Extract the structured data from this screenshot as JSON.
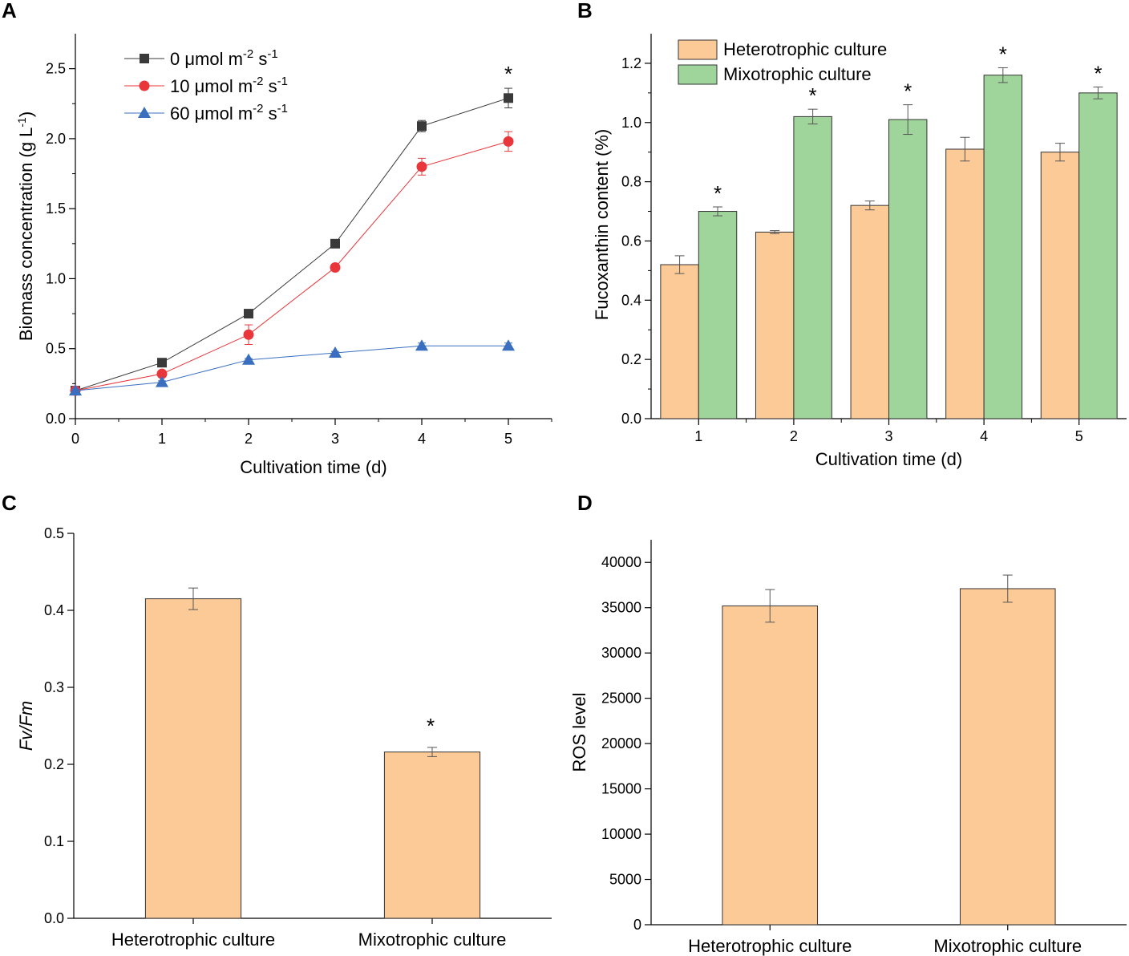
{
  "colors": {
    "dark_series": "#3a3a3a",
    "red_series": "#e8363b",
    "blue_series": "#3a6fc0",
    "heterotrophic_fill": "#fcca96",
    "mixotrophic_fill": "#9fd49b",
    "axis": "#000000",
    "error_bar": "#555555"
  },
  "chart_data": [
    {
      "id": "A",
      "panel_label": "A",
      "type": "line",
      "xlabel": "Cultivation time (d)",
      "ylabel": "Biomass concentration (g L",
      "ylabel_sup": "-1",
      "ylabel_tail": ")",
      "x": [
        0,
        1,
        2,
        3,
        4,
        5
      ],
      "xlim": [
        0,
        5.5
      ],
      "ylim": [
        0,
        2.75
      ],
      "xticks": [
        0,
        1,
        2,
        3,
        4,
        5
      ],
      "yticks": [
        0.0,
        0.5,
        1.0,
        1.5,
        2.0,
        2.5
      ],
      "series": [
        {
          "name_main": "0 μmol m",
          "name_sup1": "-2",
          "name_mid": " s",
          "name_sup2": "-1",
          "marker": "square",
          "color": "#3a3a3a",
          "values": [
            0.2,
            0.4,
            0.75,
            1.25,
            2.09,
            2.29
          ],
          "errors": [
            0.01,
            0.02,
            0.02,
            0.02,
            0.04,
            0.07
          ]
        },
        {
          "name_main": "10 μmol m",
          "name_sup1": "-2",
          "name_mid": " s",
          "name_sup2": "-1",
          "marker": "circle",
          "color": "#e8363b",
          "values": [
            0.2,
            0.32,
            0.6,
            1.08,
            1.8,
            1.98
          ],
          "errors": [
            0.01,
            0.02,
            0.07,
            0.02,
            0.06,
            0.07
          ]
        },
        {
          "name_main": "60 μmol m",
          "name_sup1": "-2",
          "name_mid": " s",
          "name_sup2": "-1",
          "marker": "triangle",
          "color": "#3a6fc0",
          "values": [
            0.2,
            0.26,
            0.42,
            0.47,
            0.52,
            0.52
          ],
          "errors": [
            0.01,
            0.01,
            0.01,
            0.01,
            0.02,
            0.02
          ]
        }
      ],
      "significance": [
        {
          "x": 5,
          "label": "*"
        }
      ]
    },
    {
      "id": "B",
      "panel_label": "B",
      "type": "bar",
      "xlabel": "Cultivation time (d)",
      "ylabel": "Fucoxanthin content (%)",
      "categories": [
        "1",
        "2",
        "3",
        "4",
        "5"
      ],
      "ylim": [
        0,
        1.3
      ],
      "yticks": [
        0.0,
        0.2,
        0.4,
        0.6,
        0.8,
        1.0,
        1.2
      ],
      "series": [
        {
          "name": "Heterotrophic culture",
          "color": "#fcca96",
          "values": [
            0.52,
            0.63,
            0.72,
            0.91,
            0.9
          ],
          "errors": [
            0.03,
            0.005,
            0.015,
            0.04,
            0.03
          ]
        },
        {
          "name": "Mixotrophic culture",
          "color": "#9fd49b",
          "values": [
            0.7,
            1.02,
            1.01,
            1.16,
            1.1
          ],
          "errors": [
            0.015,
            0.025,
            0.05,
            0.025,
            0.02
          ]
        }
      ],
      "significance_label": "*"
    },
    {
      "id": "C",
      "panel_label": "C",
      "type": "bar",
      "xlabel": "",
      "ylabel": "Fv/Fm",
      "categories": [
        "Heterotrophic culture",
        "Mixotrophic culture"
      ],
      "ylim": [
        0,
        0.5
      ],
      "yticks": [
        0.0,
        0.1,
        0.2,
        0.3,
        0.4,
        0.5
      ],
      "values": [
        0.415,
        0.216
      ],
      "errors": [
        0.014,
        0.006
      ],
      "significance": [
        {
          "category": 1,
          "label": "*"
        }
      ]
    },
    {
      "id": "D",
      "panel_label": "D",
      "type": "bar",
      "xlabel": "",
      "ylabel": "ROS level",
      "categories": [
        "Heterotrophic culture",
        "Mixotrophic culture"
      ],
      "ylim": [
        0,
        42500
      ],
      "yticks": [
        0,
        5000,
        10000,
        15000,
        20000,
        25000,
        30000,
        35000,
        40000
      ],
      "values": [
        35200,
        37100
      ],
      "errors": [
        1800,
        1500
      ]
    }
  ]
}
